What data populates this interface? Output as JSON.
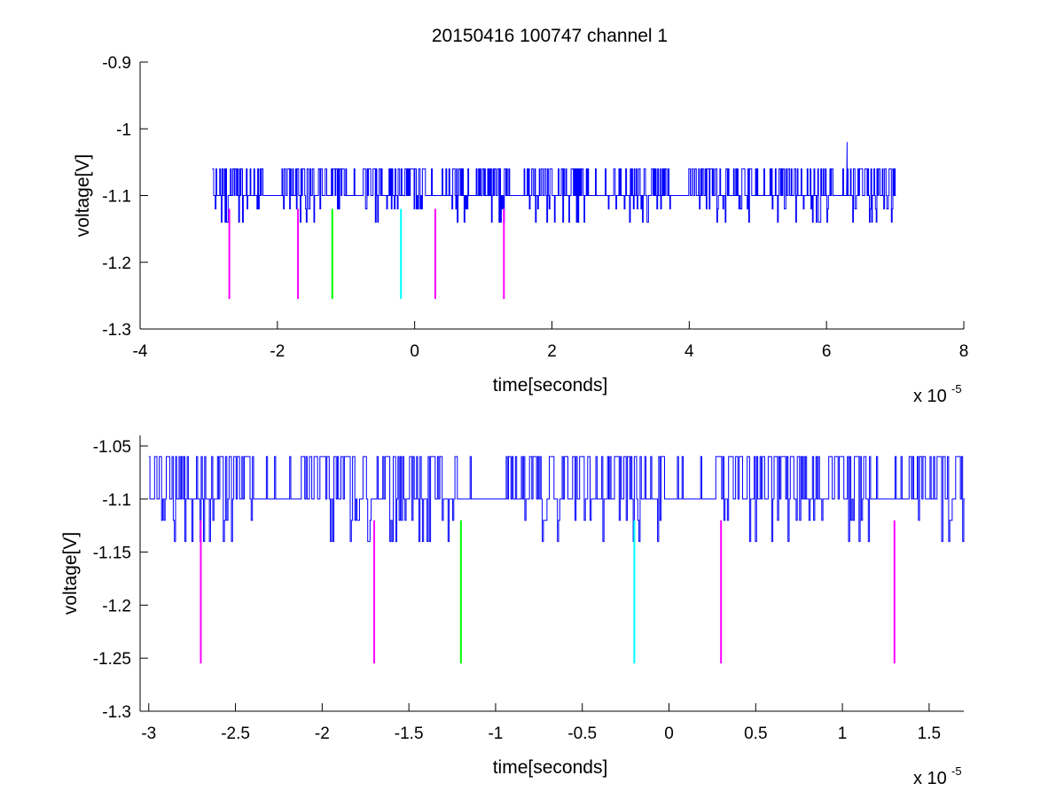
{
  "title": "20150416 100747 channel 1",
  "colors": {
    "signal": "#0000ff",
    "magenta": "#ff00ff",
    "green": "#00ff00",
    "cyan": "#00ffff",
    "axes": "#000000",
    "background": "#ffffff"
  },
  "chart_data": [
    {
      "type": "line",
      "title": "20150416 100747 channel 1",
      "xlabel": "time[seconds]",
      "ylabel": "voltage[V]",
      "x_multiplier": "x 10",
      "x_multiplier_exponent": "-5",
      "xlim": [
        -4,
        8
      ],
      "ylim": [
        -1.3,
        -0.9
      ],
      "xticks": [
        -4,
        -2,
        0,
        2,
        4,
        6,
        8
      ],
      "xtick_labels": [
        "-4",
        "-2",
        "0",
        "2",
        "4",
        "6",
        "8"
      ],
      "yticks": [
        -1.3,
        -1.2,
        -1.1,
        -1.0,
        -0.9
      ],
      "ytick_labels": [
        "-1.3",
        "-1.2",
        "-1.1",
        "-1",
        "-0.9"
      ],
      "grid": false,
      "series": [
        {
          "kind": "noisy-signal",
          "color": "#0000ff",
          "x_start": -2.95,
          "x_end": 7.0,
          "baseline": -1.1,
          "upper_level": -1.06,
          "lower_levels": [
            -1.12,
            -1.14
          ],
          "spike": {
            "x": 6.3,
            "y": -1.02
          }
        }
      ],
      "markers": [
        {
          "x": -2.7,
          "y_top": -1.12,
          "y_bottom": -1.255,
          "color": "#ff00ff"
        },
        {
          "x": -1.7,
          "y_top": -1.12,
          "y_bottom": -1.255,
          "color": "#ff00ff"
        },
        {
          "x": -1.2,
          "y_top": -1.12,
          "y_bottom": -1.255,
          "color": "#00ff00"
        },
        {
          "x": -0.2,
          "y_top": -1.12,
          "y_bottom": -1.255,
          "color": "#00ffff"
        },
        {
          "x": 0.3,
          "y_top": -1.12,
          "y_bottom": -1.255,
          "color": "#ff00ff"
        },
        {
          "x": 1.3,
          "y_top": -1.12,
          "y_bottom": -1.255,
          "color": "#ff00ff"
        }
      ]
    },
    {
      "type": "line",
      "title": "",
      "xlabel": "time[seconds]",
      "ylabel": "voltage[V]",
      "x_multiplier": "x 10",
      "x_multiplier_exponent": "-5",
      "xlim": [
        -3.05,
        1.7
      ],
      "ylim": [
        -1.3,
        -1.04
      ],
      "xticks": [
        -3,
        -2.5,
        -2,
        -1.5,
        -1,
        -0.5,
        0,
        0.5,
        1,
        1.5
      ],
      "xtick_labels": [
        "-3",
        "-2.5",
        "-2",
        "-1.5",
        "-1",
        "-0.5",
        "0",
        "0.5",
        "1",
        "1.5"
      ],
      "yticks": [
        -1.3,
        -1.25,
        -1.2,
        -1.15,
        -1.1,
        -1.05
      ],
      "ytick_labels": [
        "-1.3",
        "-1.25",
        "-1.2",
        "-1.15",
        "-1.1",
        "-1.05"
      ],
      "grid": false,
      "series": [
        {
          "kind": "noisy-signal",
          "color": "#0000ff",
          "x_start": -3.0,
          "x_end": 1.7,
          "baseline": -1.1,
          "upper_level": -1.06,
          "lower_levels": [
            -1.12,
            -1.14
          ]
        }
      ],
      "markers": [
        {
          "x": -2.7,
          "y_top": -1.12,
          "y_bottom": -1.255,
          "color": "#ff00ff"
        },
        {
          "x": -1.7,
          "y_top": -1.12,
          "y_bottom": -1.255,
          "color": "#ff00ff"
        },
        {
          "x": -1.2,
          "y_top": -1.12,
          "y_bottom": -1.255,
          "color": "#00ff00"
        },
        {
          "x": -0.2,
          "y_top": -1.12,
          "y_bottom": -1.255,
          "color": "#00ffff"
        },
        {
          "x": 0.3,
          "y_top": -1.12,
          "y_bottom": -1.255,
          "color": "#ff00ff"
        },
        {
          "x": 1.3,
          "y_top": -1.12,
          "y_bottom": -1.255,
          "color": "#ff00ff"
        }
      ]
    }
  ]
}
